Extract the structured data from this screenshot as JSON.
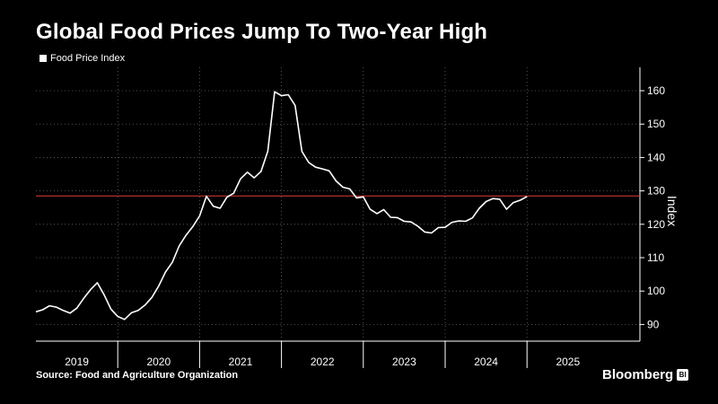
{
  "header": {
    "title": "Global Food Prices Jump To Two-Year High",
    "legend_label": "Food Price Index"
  },
  "footer": {
    "source": "Source: Food and Agriculture Organization",
    "brand": "Bloomberg",
    "brand_icon_text": "Bl"
  },
  "colors": {
    "background": "#000000",
    "line": "#ffffff",
    "reference_line": "#e03a3a",
    "grid": "#666666"
  },
  "chart_data": {
    "type": "line",
    "title": "Global Food Prices Jump To Two-Year High",
    "xlabel": "",
    "ylabel": "Index",
    "ylim": [
      85,
      167
    ],
    "y_ticks": [
      90,
      100,
      110,
      120,
      130,
      140,
      150,
      160
    ],
    "x_tick_labels": [
      "2019",
      "2020",
      "2021",
      "2022",
      "2023",
      "2024",
      "2025"
    ],
    "grid": true,
    "legend_position": "top-left",
    "reference_line": {
      "y": 128.5
    },
    "series": [
      {
        "name": "Food Price Index",
        "start": "2019-01",
        "frequency": "monthly",
        "values": [
          93.8,
          94.4,
          95.6,
          95.2,
          94.2,
          93.4,
          94.9,
          97.8,
          100.4,
          102.5,
          98.9,
          94.6,
          92.4,
          91.5,
          93.5,
          94.2,
          95.8,
          98.1,
          101.5,
          105.7,
          108.6,
          113.5,
          116.7,
          119.3,
          122.5,
          128.4,
          125.4,
          124.8,
          128.1,
          129.3,
          133.6,
          135.6,
          133.9,
          135.8,
          141.9,
          159.7,
          158.5,
          158.8,
          155.6,
          141.8,
          138.5,
          137.1,
          136.6,
          136.0,
          133.0,
          131.1,
          130.6,
          127.9,
          128.2,
          124.5,
          123.2,
          124.4,
          122.1,
          122.0,
          120.9,
          120.7,
          119.4,
          117.7,
          117.4,
          119.0,
          119.1,
          120.6,
          121.0,
          120.9,
          121.9,
          124.8,
          126.8,
          127.7,
          127.5,
          124.5,
          126.5,
          127.2,
          128.3
        ]
      }
    ]
  }
}
